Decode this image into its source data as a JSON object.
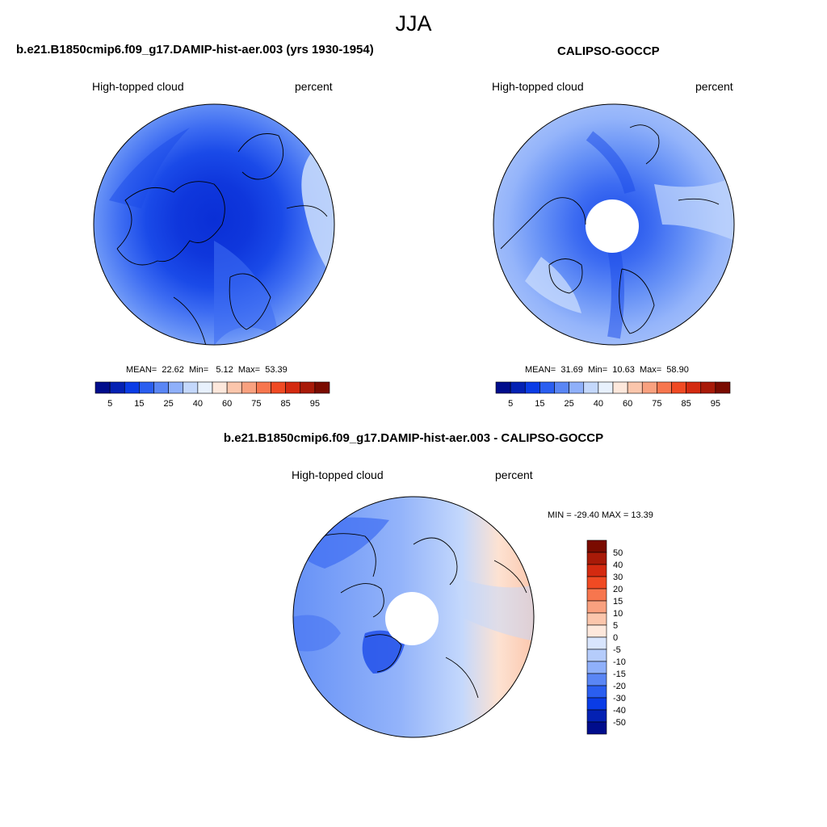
{
  "page": {
    "title": "JJA"
  },
  "panels": [
    {
      "title": "b.e21.B1850cmip6.f09_g17.DAMIP-hist-aer.003 (yrs 1930-1954)",
      "variable": "High-topped cloud",
      "units": "percent",
      "stats": {
        "mean_label": "MEAN=",
        "mean": "22.62",
        "min_label": "Min=",
        "min": "5.12",
        "max_label": "Max=",
        "max": "53.39"
      }
    },
    {
      "title": "CALIPSO-GOCCP",
      "variable": "High-topped cloud",
      "units": "percent",
      "stats": {
        "mean_label": "MEAN=",
        "mean": "31.69",
        "min_label": "Min=",
        "min": "10.63",
        "max_label": "Max=",
        "max": "58.90"
      }
    },
    {
      "title": "b.e21.B1850cmip6.f09_g17.DAMIP-hist-aer.003 - CALIPSO-GOCCP",
      "variable": "High-topped cloud",
      "units": "percent",
      "stats_text": "MIN = -29.40 MAX =  13.39"
    }
  ],
  "colorbar_abs": {
    "colors": [
      "#000d8c",
      "#0421b3",
      "#0a3ce6",
      "#2a5ef0",
      "#5a86f5",
      "#8fb0fa",
      "#c4d8fc",
      "#e8f1fd",
      "#fde8dc",
      "#fbc6ac",
      "#f9a17f",
      "#f7764e",
      "#f04a23",
      "#d42a10",
      "#a81a08",
      "#7a0b00"
    ],
    "tick_labels": [
      "5",
      "15",
      "25",
      "40",
      "60",
      "75",
      "85",
      "95"
    ]
  },
  "colorbar_diff": {
    "colors": [
      "#000d8c",
      "#0421b3",
      "#0a3ce6",
      "#2a5ef0",
      "#5a86f5",
      "#8fb0fa",
      "#b5ccfb",
      "#d8e5fd",
      "#fde8dc",
      "#fbc6ac",
      "#f9a17f",
      "#f7764e",
      "#f04a23",
      "#d42a10",
      "#a81a08",
      "#7a0b00"
    ],
    "tick_labels": [
      "50",
      "40",
      "30",
      "20",
      "15",
      "10",
      "5",
      "0",
      "-5",
      "-10",
      "-15",
      "-20",
      "-30",
      "-40",
      "-50"
    ]
  },
  "map_colors": {
    "deep": "#0a2fd6",
    "dark": "#1a4ae8",
    "mid": "#3d6cf2",
    "medium": "#6691f6",
    "light": "#94b4fa",
    "pale": "#c4d8fc",
    "faint": "#e2edfd",
    "warm1": "#fde2d2",
    "warm2": "#fbc6ac"
  }
}
